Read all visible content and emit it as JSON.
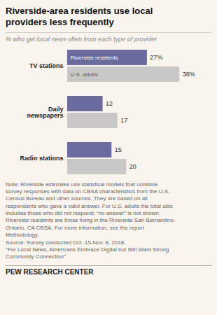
{
  "chart_data": {
    "type": "bar",
    "orientation": "horizontal",
    "title": "Riverside-area residents use local\nproviders less frequently",
    "subtitle": "% who get local news often from each type of provider",
    "categories": [
      "TV stations",
      "Daily\nnewspapers",
      "Radio stations"
    ],
    "series": [
      {
        "name": "Riverside residents",
        "color": "#6b6b9e",
        "values": [
          27,
          12,
          15
        ],
        "value_labels": [
          "27%",
          "12",
          "15"
        ]
      },
      {
        "name": "U.S. adults",
        "color": "#c8c8c8",
        "values": [
          38,
          17,
          20
        ],
        "value_labels": [
          "38%",
          "17",
          "20"
        ]
      }
    ],
    "xlim": [
      0,
      46
    ],
    "data_labels": true,
    "tick_labels": "y",
    "annotations": [
      "Note: Riverside estimates use statistical models that combine\nsurvey responses with data on CBSA characteristics from the U.S.\nCensus Bureau and other sources. They are based on all\nrespondents who gave a valid answer. For U.S. adults the total also\nincludes those who did not respond; “no answer” is not shown.\nRiverside residents are those living in the Riverside-San Bernardino-\nOntario, CA CBSA. For more information, see the report\nMethodology.\nSource: Survey conducted Oct. 15-Nov. 8, 2018.\n“For Local News, Americans Embrace Digital but Still Want Strong\nCommunity Connection”",
      "PEW RESEARCH CENTER"
    ]
  }
}
